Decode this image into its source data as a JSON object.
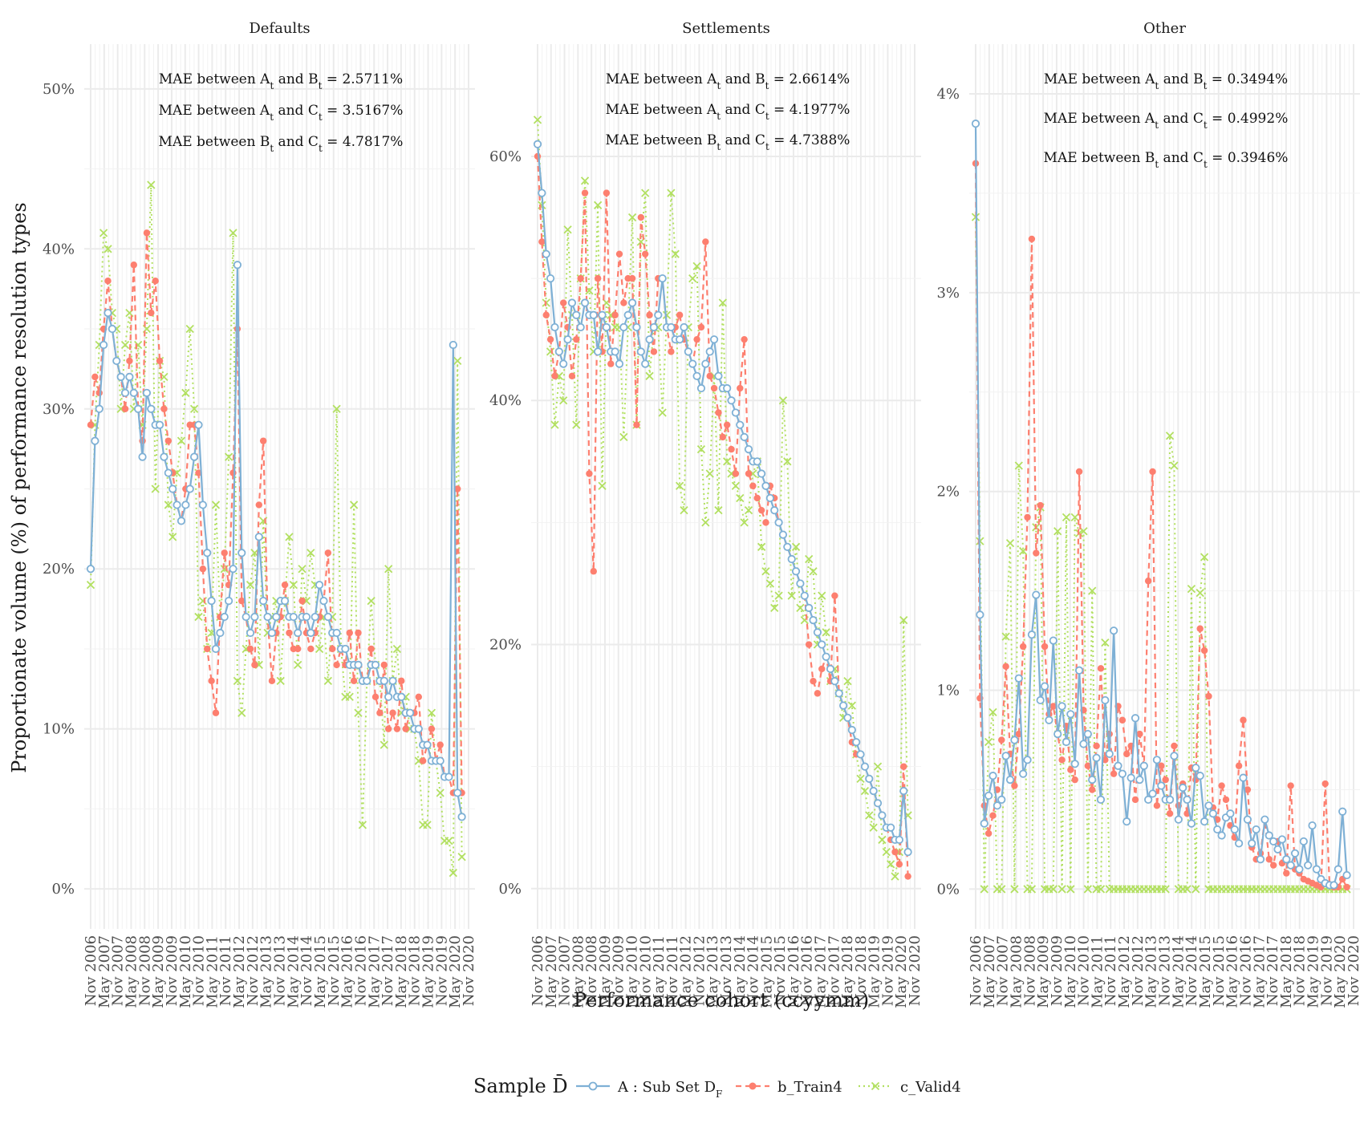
{
  "chart_data": {
    "type": "line",
    "ylabel": "Proportionate volume (%) of performance resolution types",
    "xlabel": "Performance cohort (ccyymm)",
    "x_ticks": [
      "Nov 2006",
      "May 2007",
      "Nov 2007",
      "May 2008",
      "Nov 2008",
      "May 2009",
      "Nov 2009",
      "May 2010",
      "Nov 2010",
      "May 2011",
      "Nov 2011",
      "May 2012",
      "Nov 2012",
      "May 2013",
      "Nov 2013",
      "May 2014",
      "Nov 2014",
      "May 2015",
      "Nov 2015",
      "May 2016",
      "Nov 2016",
      "May 2017",
      "Nov 2017",
      "May 2018",
      "Nov 2018",
      "May 2019",
      "Nov 2019",
      "May 2020",
      "Nov 2020"
    ],
    "grid": true,
    "legend": {
      "title": "Sample D̄",
      "position": "bottom",
      "entries": [
        {
          "label": "A : Sub Set D",
          "sub": "F",
          "color": "#7eb0d5",
          "style": "solid-open-circle"
        },
        {
          "label": "b_Train4",
          "color": "#fd7f6f",
          "style": "dashed-filled-circle"
        },
        {
          "label": "c_Valid4",
          "color": "#b2e061",
          "style": "dotted-cross"
        }
      ]
    },
    "panels": [
      {
        "title": "Defaults",
        "y_ticks": [
          "0%",
          "10%",
          "20%",
          "30%",
          "40%",
          "50%"
        ],
        "y_tick_values": [
          0,
          10,
          20,
          30,
          40,
          50
        ],
        "ylim": [
          -2.5,
          52.8
        ],
        "annotations": [
          {
            "pre": "MAE between A",
            "s1": "t",
            "mid": " and B",
            "s2": "t",
            "post": " = 2.5711%"
          },
          {
            "pre": "MAE between A",
            "s1": "t",
            "mid": " and C",
            "s2": "t",
            "post": " = 3.5167%"
          },
          {
            "pre": "MAE between B",
            "s1": "t",
            "mid": " and C",
            "s2": "t",
            "post": " = 4.7817%"
          }
        ],
        "series": [
          {
            "name": "A : Sub Set D_F",
            "values": [
              20,
              28,
              30,
              34,
              36,
              35,
              33,
              32,
              31,
              32,
              31,
              30,
              27,
              31,
              30,
              29,
              29,
              27,
              26,
              25,
              24,
              23,
              24,
              25,
              27,
              29,
              24,
              21,
              18,
              15,
              16,
              17,
              18,
              20,
              39,
              21,
              17,
              16,
              17,
              22,
              18,
              17,
              16,
              17,
              18,
              18,
              17,
              17,
              16,
              17,
              17,
              16,
              17,
              19,
              18,
              17,
              16,
              16,
              15,
              15,
              14,
              14,
              14,
              13,
              13,
              14,
              14,
              13,
              13,
              12,
              13,
              12,
              12,
              11,
              11,
              10,
              10,
              9,
              9,
              8,
              8,
              8,
              7,
              7,
              34,
              6,
              4.5
            ]
          },
          {
            "name": "b_Train4",
            "values": [
              29,
              32,
              31,
              35,
              38,
              35,
              33,
              32,
              30,
              33,
              39,
              30,
              28,
              41,
              36,
              38,
              33,
              30,
              28,
              26,
              24,
              23,
              25,
              29,
              29,
              26,
              20,
              15,
              13,
              11,
              17,
              21,
              19,
              26,
              35,
              18,
              17,
              15,
              14,
              24,
              28,
              17,
              13,
              16,
              17,
              19,
              16,
              15,
              15,
              18,
              16,
              15,
              16,
              17,
              18,
              21,
              15,
              14,
              15,
              14,
              16,
              13,
              16,
              13,
              13,
              15,
              12,
              11,
              14,
              10,
              11,
              10,
              13,
              10,
              11,
              11,
              12,
              8,
              9,
              10,
              8,
              9,
              7,
              7,
              6,
              25,
              6
            ]
          },
          {
            "name": "c_Valid4",
            "values": [
              19,
              29,
              34,
              41,
              40,
              36,
              35,
              30,
              34,
              36,
              30,
              34,
              29,
              35,
              44,
              25,
              33,
              32,
              24,
              22,
              26,
              28,
              31,
              35,
              30,
              17,
              18,
              15,
              16,
              24,
              17,
              20,
              27,
              41,
              13,
              11,
              15,
              19,
              21,
              14,
              23,
              16,
              17,
              18,
              13,
              18,
              22,
              19,
              14,
              20,
              18,
              21,
              19,
              15,
              17,
              13,
              17,
              30,
              15,
              12,
              12,
              24,
              11,
              4,
              13,
              18,
              14,
              13,
              9,
              20,
              13,
              15,
              11,
              12,
              10,
              10,
              8,
              4,
              4,
              11,
              8,
              6,
              3,
              3,
              1,
              33,
              2
            ]
          }
        ]
      },
      {
        "title": "Settlements",
        "y_ticks": [
          "0%",
          "20%",
          "40%",
          "60%"
        ],
        "y_tick_values": [
          0,
          20,
          40,
          60
        ],
        "ylim": [
          -3.3,
          69.2
        ],
        "annotations": [
          {
            "pre": "MAE between A",
            "s1": "t",
            "mid": " and B",
            "s2": "t",
            "post": " = 2.6614%"
          },
          {
            "pre": "MAE between A",
            "s1": "t",
            "mid": " and C",
            "s2": "t",
            "post": " = 4.1977%"
          },
          {
            "pre": "MAE between B",
            "s1": "t",
            "mid": " and C",
            "s2": "t",
            "post": " = 4.7388%"
          }
        ],
        "series": [
          {
            "name": "A : Sub Set D_F",
            "values": [
              61,
              57,
              52,
              50,
              46,
              44,
              43,
              45,
              48,
              47,
              46,
              48,
              47,
              47,
              44,
              47,
              46,
              44,
              44,
              43,
              46,
              47,
              48,
              46,
              44,
              43,
              45,
              46,
              47,
              50,
              46,
              46,
              45,
              45,
              46,
              44,
              43,
              42,
              41,
              43,
              44,
              45,
              42,
              41,
              41,
              40,
              39,
              38,
              37,
              36,
              35,
              35,
              34,
              33,
              32,
              31,
              30,
              29,
              28,
              27,
              26,
              25,
              24,
              23,
              22,
              21,
              20,
              19,
              18,
              17,
              16,
              15,
              14,
              13,
              12,
              11,
              10,
              9,
              8,
              7,
              6,
              5,
              5,
              4,
              4,
              8,
              3
            ]
          },
          {
            "name": "b_Train4",
            "values": [
              60,
              53,
              47,
              45,
              42,
              44,
              48,
              46,
              42,
              45,
              50,
              57,
              34,
              26,
              50,
              44,
              57,
              43,
              47,
              52,
              48,
              50,
              50,
              38,
              55,
              52,
              47,
              44,
              50,
              50,
              46,
              44,
              46,
              47,
              45,
              44,
              43,
              45,
              46,
              53,
              42,
              41,
              39,
              37,
              38,
              36,
              34,
              41,
              45,
              34,
              33,
              32,
              31,
              30,
              33,
              32,
              30,
              29,
              28,
              27,
              26,
              25,
              24,
              20,
              17,
              16,
              18,
              19,
              17,
              24,
              16,
              15,
              14,
              12,
              11,
              11,
              10,
              9,
              8,
              7,
              6,
              5,
              4,
              3,
              2,
              10,
              1
            ]
          },
          {
            "name": "c_Valid4",
            "values": [
              63,
              56,
              48,
              44,
              38,
              42,
              40,
              54,
              47,
              38,
              50,
              58,
              49,
              44,
              56,
              33,
              48,
              47,
              46,
              46,
              37,
              46,
              55,
              38,
              53,
              57,
              42,
              46,
              46,
              39,
              47,
              57,
              52,
              33,
              31,
              46,
              50,
              51,
              36,
              30,
              34,
              42,
              31,
              48,
              35,
              34,
              33,
              32,
              30,
              31,
              34,
              35,
              28,
              26,
              25,
              23,
              24,
              40,
              35,
              24,
              28,
              23,
              22,
              27,
              26,
              20,
              24,
              21,
              17,
              18,
              16,
              14,
              17,
              15,
              11,
              9,
              8,
              6,
              5,
              10,
              4,
              3,
              2,
              1,
              3,
              22,
              6
            ]
          }
        ]
      },
      {
        "title": "Other",
        "y_ticks": [
          "0%",
          "1%",
          "2%",
          "3%",
          "4%"
        ],
        "y_tick_values": [
          0,
          1,
          2,
          3,
          4
        ],
        "ylim": [
          -0.2,
          4.25
        ],
        "annotations": [
          {
            "pre": "MAE between A",
            "s1": "t",
            "mid": " and B",
            "s2": "t",
            "post": " = 0.3494%"
          },
          {
            "pre": "MAE between A",
            "s1": "t",
            "mid": " and C",
            "s2": "t",
            "post": " = 0.4992%"
          },
          {
            "pre": "MAE between B",
            "s1": "t",
            "mid": " and C",
            "s2": "t",
            "post": " = 0.3946%"
          }
        ],
        "series": [
          {
            "name": "A : Sub Set D_F",
            "values": [
              3.85,
              1.38,
              0.33,
              0.47,
              0.57,
              0.42,
              0.45,
              0.67,
              0.55,
              0.75,
              1.06,
              0.58,
              0.65,
              1.28,
              1.48,
              0.95,
              1.02,
              0.85,
              1.25,
              0.78,
              0.92,
              0.74,
              0.88,
              0.63,
              1.1,
              0.73,
              0.78,
              0.55,
              0.66,
              0.45,
              0.95,
              0.68,
              1.3,
              0.62,
              0.58,
              0.34,
              0.56,
              0.86,
              0.55,
              0.62,
              0.45,
              0.48,
              0.65,
              0.52,
              0.45,
              0.45,
              0.67,
              0.35,
              0.51,
              0.45,
              0.33,
              0.61,
              0.57,
              0.34,
              0.42,
              0.38,
              0.3,
              0.27,
              0.36,
              0.38,
              0.3,
              0.23,
              0.56,
              0.35,
              0.23,
              0.3,
              0.15,
              0.35,
              0.27,
              0.24,
              0.2,
              0.25,
              0.15,
              0.12,
              0.18,
              0.1,
              0.24,
              0.12,
              0.32,
              0.1,
              0.05,
              0.03,
              0.02,
              0.02,
              0.1,
              0.39,
              0.07
            ]
          },
          {
            "name": "b_Train4",
            "values": [
              3.65,
              0.96,
              0.42,
              0.28,
              0.37,
              0.5,
              0.75,
              1.12,
              0.68,
              0.52,
              0.78,
              1.22,
              1.87,
              3.27,
              1.69,
              1.93,
              1.22,
              0.88,
              0.92,
              0.78,
              0.65,
              0.82,
              0.6,
              0.55,
              2.1,
              0.9,
              0.62,
              0.5,
              0.72,
              1.11,
              0.65,
              0.78,
              0.58,
              0.92,
              0.85,
              0.68,
              0.72,
              0.45,
              0.78,
              0.62,
              1.55,
              2.1,
              0.42,
              0.62,
              0.55,
              0.38,
              0.72,
              0.42,
              0.53,
              0.38,
              0.61,
              0.55,
              1.31,
              1.2,
              0.97,
              0.41,
              0.35,
              0.52,
              0.45,
              0.32,
              0.26,
              0.62,
              0.85,
              0.5,
              0.21,
              0.15,
              0.18,
              0.35,
              0.15,
              0.12,
              0.24,
              0.13,
              0.08,
              0.52,
              0.1,
              0.08,
              0.05,
              0.04,
              0.03,
              0.02,
              0.01,
              0.53,
              0.02,
              0.01,
              0.01,
              0.05,
              0.01
            ]
          },
          {
            "name": "c_Valid4",
            "values": [
              3.38,
              1.75,
              0.0,
              0.74,
              0.89,
              0.0,
              0.0,
              1.27,
              1.74,
              0.0,
              2.13,
              1.7,
              0.0,
              0.0,
              1.82,
              1.92,
              0.0,
              0.0,
              0.0,
              1.8,
              0.0,
              1.87,
              0.0,
              1.87,
              1.79,
              1.8,
              0.0,
              1.5,
              0.0,
              0.0,
              1.24,
              0.0,
              0.0,
              0.0,
              0.0,
              0.0,
              0.0,
              0.0,
              0.0,
              0.0,
              0.0,
              0.0,
              0.0,
              0.0,
              0.0,
              2.28,
              2.13,
              0.0,
              0.0,
              0.0,
              1.51,
              0.0,
              1.49,
              1.67,
              0.0,
              0.0,
              0.0,
              0.0,
              0.0,
              0.0,
              0.0,
              0.0,
              0.0,
              0.0,
              0.0,
              0.0,
              0.0,
              0.0,
              0.0,
              0.0,
              0.0,
              0.0,
              0.0,
              0.0,
              0.0,
              0.0,
              0.0,
              0.0,
              0.0,
              0.0,
              0.0,
              0.0,
              0.0,
              0.0,
              0.0,
              0.0,
              0.0
            ]
          }
        ]
      }
    ]
  }
}
